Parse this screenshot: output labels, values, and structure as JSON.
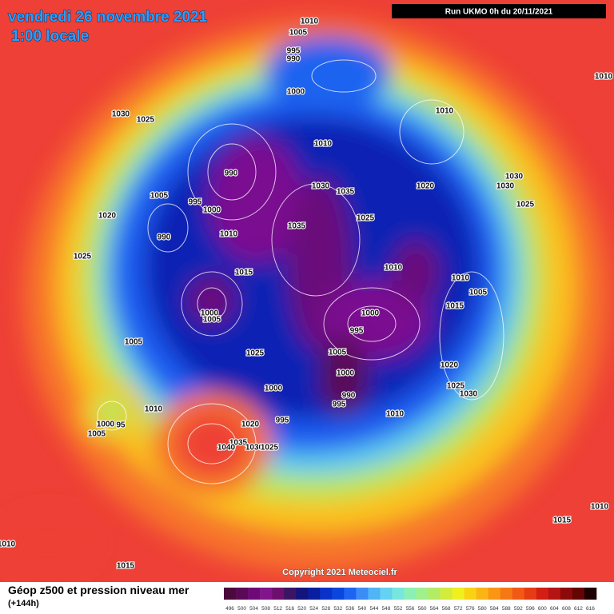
{
  "header": {
    "date": "vendredi 26 novembre 2021",
    "time": "1:00 locale",
    "run": "Run UKMO 0h du 20/11/2021"
  },
  "map": {
    "pressure_labels": [
      "1010",
      "1005",
      "995",
      "990",
      "1000",
      "1030",
      "1025",
      "1010",
      "1010",
      "990",
      "1030",
      "1035",
      "1020",
      "1030",
      "1030",
      "1025",
      "1005",
      "995",
      "1000",
      "1020",
      "1035",
      "1025",
      "1010",
      "990",
      "1025",
      "1015",
      "1010",
      "1010",
      "1005",
      "1015",
      "1000",
      "1005",
      "1000",
      "995",
      "1005",
      "1025",
      "1005",
      "1020",
      "1000",
      "1025",
      "1030",
      "990",
      "995",
      "1000",
      "995",
      "1010",
      "1010",
      "1000",
      "95",
      "1005",
      "1020",
      "1035",
      "1040",
      "1030",
      "1025",
      "1010",
      "1015",
      "1010",
      "1015",
      "1010"
    ]
  },
  "footer": {
    "title": "Géop z500 et pression niveau mer",
    "lead": "(+144h)",
    "copyright": "Copyright 2021 Meteociel.fr"
  },
  "legend": {
    "values": [
      496,
      500,
      504,
      508,
      512,
      516,
      520,
      524,
      528,
      532,
      536,
      540,
      544,
      548,
      552,
      556,
      560,
      564,
      568,
      572,
      576,
      580,
      584,
      588,
      592,
      596,
      600,
      604,
      608,
      612,
      616
    ],
    "colors": [
      "#4b0a3c",
      "#5a0a55",
      "#6e0a78",
      "#82148c",
      "#6e0f6e",
      "#3c1464",
      "#14147d",
      "#0a1ea0",
      "#0a32c8",
      "#0a46dc",
      "#1e64f0",
      "#3c8cf5",
      "#50b4f5",
      "#64d2f0",
      "#78e6dc",
      "#8cf0b4",
      "#a0f08c",
      "#b4eb64",
      "#d2eb3c",
      "#f0f01e",
      "#fad214",
      "#fab414",
      "#fa9614",
      "#f57814",
      "#f05a14",
      "#e63c14",
      "#d21e14",
      "#b41414",
      "#8c0a0a",
      "#640505",
      "#1e0000"
    ]
  }
}
